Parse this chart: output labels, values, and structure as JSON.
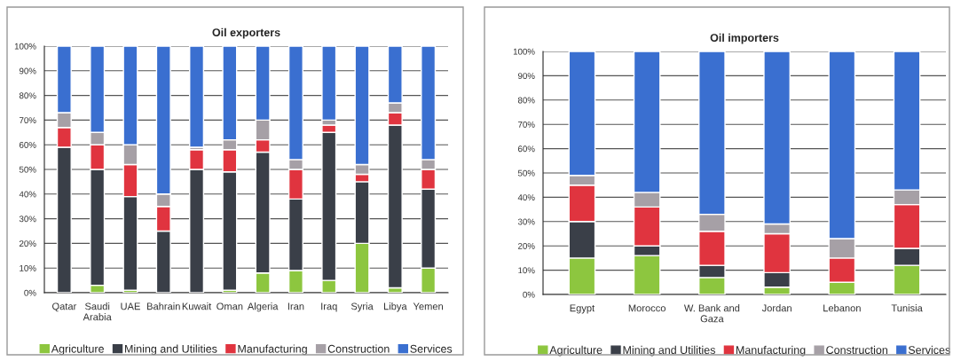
{
  "chart_data": [
    {
      "type": "bar",
      "stacked": true,
      "title": "Oil exporters",
      "categories": [
        "Qatar",
        "Saudi\nArabia",
        "UAE",
        "Bahrain",
        "Kuwait",
        "Oman",
        "Algeria",
        "Iran",
        "Iraq",
        "Syria",
        "Libya",
        "Yemen"
      ],
      "series": [
        {
          "name": "Agriculture",
          "color": "#8dc63f",
          "values": [
            0,
            3,
            1,
            0,
            0,
            1,
            8,
            9,
            5,
            20,
            2,
            10
          ]
        },
        {
          "name": "Mining and Utilities",
          "color": "#3a3f48",
          "values": [
            59,
            47,
            38,
            25,
            50,
            48,
            49,
            29,
            60,
            25,
            66,
            32
          ]
        },
        {
          "name": "Manufacturing",
          "color": "#e0343f",
          "values": [
            8,
            10,
            13,
            10,
            8,
            9,
            5,
            12,
            3,
            3,
            5,
            8
          ]
        },
        {
          "name": "Construction",
          "color": "#a6a0a6",
          "values": [
            6,
            5,
            8,
            5,
            1,
            4,
            8,
            4,
            2,
            4,
            4,
            4
          ]
        },
        {
          "name": "Services",
          "color": "#3a6fd0",
          "values": [
            27,
            35,
            40,
            60,
            41,
            38,
            30,
            46,
            30,
            48,
            23,
            46
          ]
        }
      ],
      "ylim": [
        0,
        100
      ],
      "yticks": [
        {
          "value": 0,
          "label": "0%"
        },
        {
          "value": 10,
          "label": "10%"
        },
        {
          "value": 20,
          "label": "20%"
        },
        {
          "value": 30,
          "label": "30%"
        },
        {
          "value": 40,
          "label": "40%"
        },
        {
          "value": 50,
          "label": "50%"
        },
        {
          "value": 60,
          "label": "60%"
        },
        {
          "value": 70,
          "label": "70%"
        },
        {
          "value": 80,
          "label": "80%"
        },
        {
          "value": 90,
          "label": "90%"
        },
        {
          "value": 100,
          "label": "100%"
        }
      ],
      "grid": "y",
      "legend": "bottom"
    },
    {
      "type": "bar",
      "stacked": true,
      "title": "Oil importers",
      "categories": [
        "Egypt",
        "Morocco",
        "W. Bank and\nGaza",
        "Jordan",
        "Lebanon",
        "Tunisia"
      ],
      "series": [
        {
          "name": "Agriculture",
          "color": "#8dc63f",
          "values": [
            15,
            16,
            7,
            3,
            5,
            12
          ]
        },
        {
          "name": "Mining and Utilities",
          "color": "#3a3f48",
          "values": [
            15,
            4,
            5,
            6,
            0,
            7
          ]
        },
        {
          "name": "Manufacturing",
          "color": "#e0343f",
          "values": [
            15,
            16,
            14,
            16,
            10,
            18
          ]
        },
        {
          "name": "Construction",
          "color": "#a6a0a6",
          "values": [
            4,
            6,
            7,
            4,
            8,
            6
          ]
        },
        {
          "name": "Services",
          "color": "#3a6fd0",
          "values": [
            51,
            58,
            67,
            71,
            77,
            57
          ]
        }
      ],
      "ylim": [
        0,
        100
      ],
      "yticks": [
        {
          "value": 0,
          "label": "0%"
        },
        {
          "value": 10,
          "label": "10%"
        },
        {
          "value": 20,
          "label": "20%"
        },
        {
          "value": 30,
          "label": "30%"
        },
        {
          "value": 40,
          "label": "40%"
        },
        {
          "value": 50,
          "label": "50%"
        },
        {
          "value": 60,
          "label": "60%"
        },
        {
          "value": 70,
          "label": "70%"
        },
        {
          "value": 80,
          "label": "80%"
        },
        {
          "value": 90,
          "label": "90%"
        },
        {
          "value": 100,
          "label": "100%"
        }
      ],
      "grid": "y",
      "legend": "bottom"
    }
  ]
}
